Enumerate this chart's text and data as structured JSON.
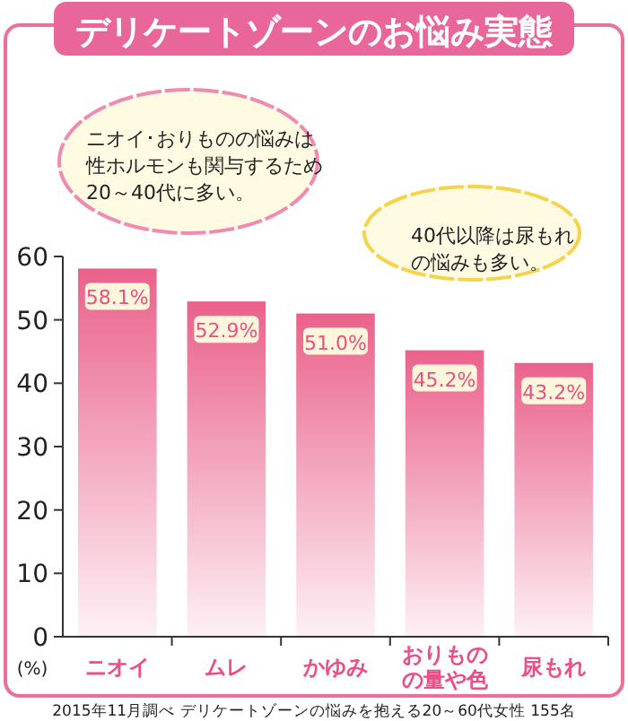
{
  "chart_data": {
    "type": "bar",
    "title": "デリケートゾーンのお悩み実態",
    "categories": [
      "ニオイ",
      "ムレ",
      "かゆみ",
      "おりものの量や色",
      "尿もれ"
    ],
    "values": [
      58.1,
      52.9,
      51.0,
      45.2,
      43.2
    ],
    "value_labels": [
      "58.1%",
      "52.9%",
      "51.0%",
      "45.2%",
      "43.2%"
    ],
    "color": "#e8507f",
    "ylim": [
      0,
      60
    ],
    "yticks": [
      0,
      10,
      20,
      30,
      40,
      50,
      60
    ],
    "ylabel": "(%)",
    "grid": false,
    "annotations": [
      "ニオイ･おりものの悩みは性ホルモンも関与するため20～40代に多い。",
      "40代以降は尿もれの悩みも多い。",
      "2015年11月調べ デリケートゾーンの悩みを抱える20～60代女性 155名"
    ]
  }
}
